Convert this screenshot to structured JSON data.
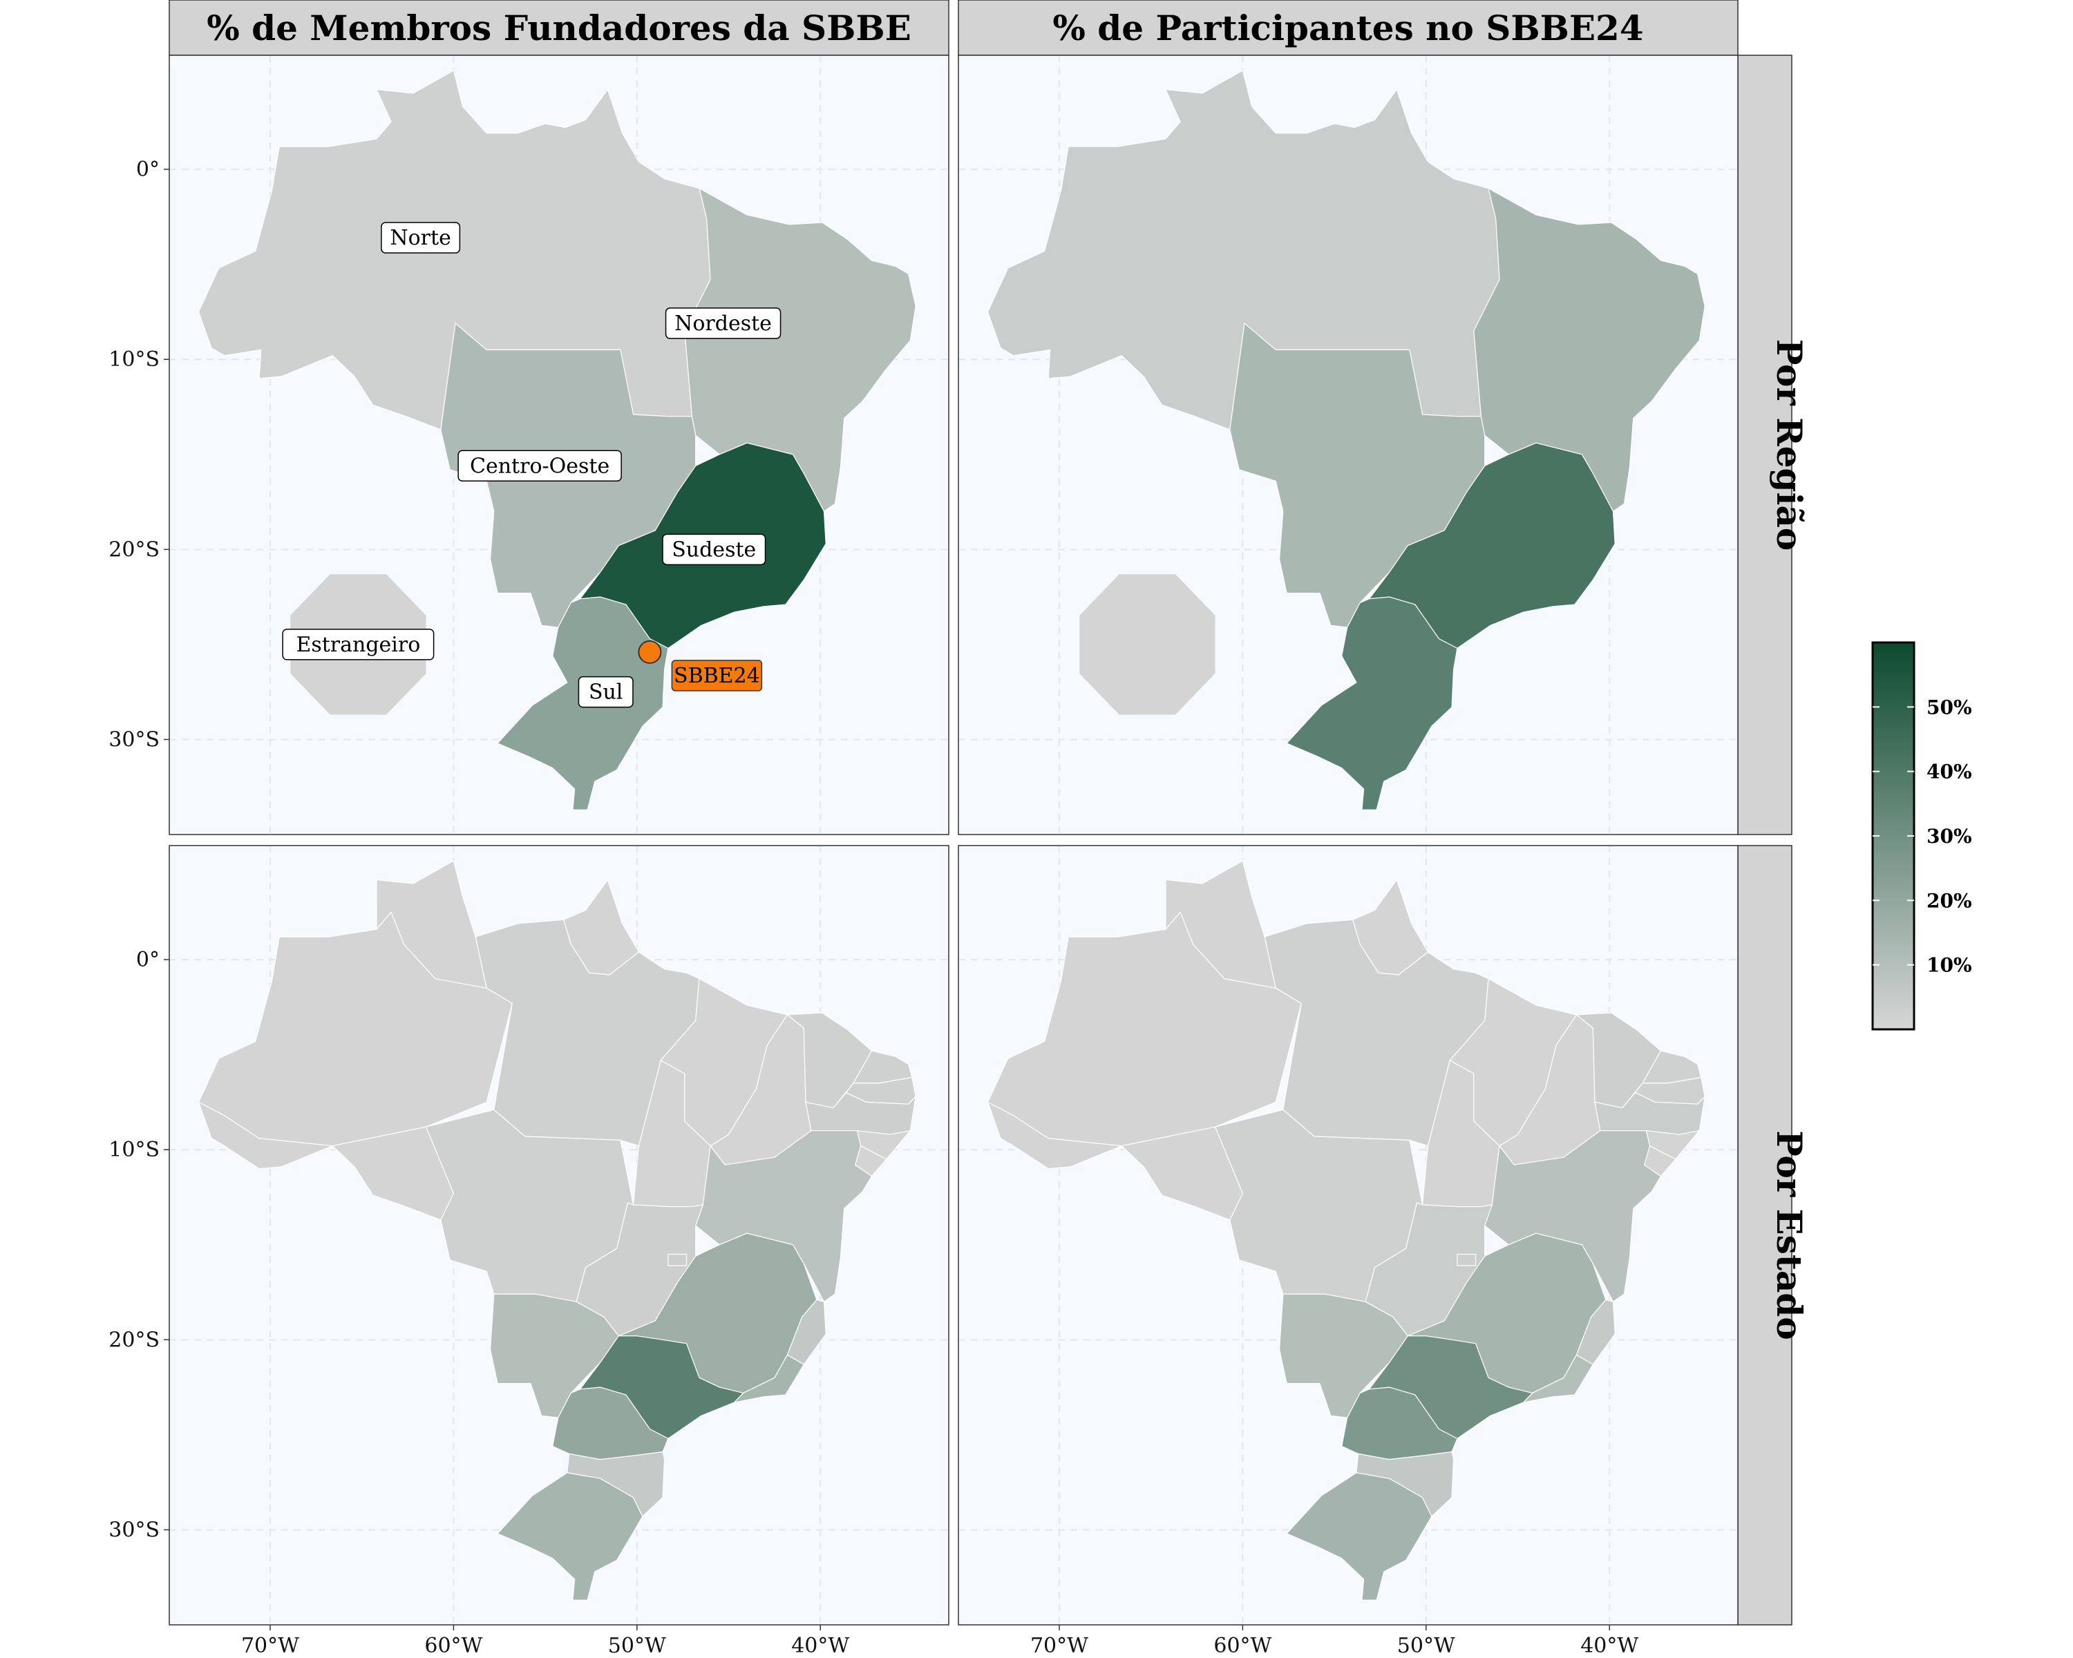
{
  "panels": {
    "col_titles": [
      "% de Membros Fundadores da SBBE",
      "% de Participantes no SBBE24"
    ],
    "row_titles": [
      "Por Região",
      "Por Estado"
    ]
  },
  "axes": {
    "x_ticks": [
      {
        "lon": -70,
        "label": "70°W"
      },
      {
        "lon": -60,
        "label": "60°W"
      },
      {
        "lon": -50,
        "label": "50°W"
      },
      {
        "lon": -40,
        "label": "40°W"
      }
    ],
    "y_ticks": [
      {
        "lat": 0,
        "label": "0°"
      },
      {
        "lat": -10,
        "label": "10°S"
      },
      {
        "lat": -20,
        "label": "20°S"
      },
      {
        "lat": -30,
        "label": "30°S"
      }
    ],
    "lon_range": [
      -75.5,
      -33
    ],
    "lat_range": [
      -35,
      6
    ]
  },
  "region_labels": [
    {
      "name": "Norte",
      "lon": -61.8,
      "lat": -3.6
    },
    {
      "name": "Nordeste",
      "lon": -45.3,
      "lat": -8.1
    },
    {
      "name": "Centro-Oeste",
      "lon": -55.3,
      "lat": -15.6
    },
    {
      "name": "Sudeste",
      "lon": -45.8,
      "lat": -20.0
    },
    {
      "name": "Sul",
      "lon": -51.7,
      "lat": -27.5
    },
    {
      "name": "Estrangeiro",
      "lon": -65.2,
      "lat": -25.0
    }
  ],
  "event_marker": {
    "name": "SBBE24",
    "lon": -49.3,
    "lat": -25.4,
    "color": "#f57a0c"
  },
  "legend": {
    "ticks": [
      {
        "value": 10,
        "label": "10%"
      },
      {
        "value": 20,
        "label": "20%"
      },
      {
        "value": 30,
        "label": "30%"
      },
      {
        "value": 40,
        "label": "40%"
      },
      {
        "value": 50,
        "label": "50%"
      }
    ],
    "range": [
      0,
      60
    ],
    "color_low": "#d6d6d6",
    "color_high": "#0c4a30"
  },
  "chart_data": {
    "type": "choropleth",
    "region_values": {
      "fundadores": {
        "Norte": 2,
        "Nordeste": 10,
        "Centro-Oeste": 12,
        "Sudeste": 55,
        "Sul": 22,
        "Estrangeiro": 1
      },
      "participantes": {
        "Norte": 4,
        "Nordeste": 14,
        "Centro-Oeste": 13,
        "Sudeste": 42,
        "Sul": 37,
        "Estrangeiro": 1
      }
    },
    "state_values": {
      "fundadores": {
        "SP": 37,
        "MG": 17,
        "RJ": 14,
        "ES": 6,
        "PR": 20,
        "SC": 5,
        "RS": 14,
        "MS": 10,
        "GO": 3,
        "DF": 3,
        "MT": 2,
        "BA": 8,
        "PE": 3,
        "CE": 2,
        "RN": 2,
        "PB": 2,
        "AL": 1,
        "SE": 1,
        "PI": 1,
        "MA": 1,
        "AM": 1,
        "PA": 2,
        "TO": 1,
        "RO": 1,
        "AC": 1,
        "RR": 1,
        "AP": 1
      },
      "participantes": {
        "SP": 30,
        "MG": 14,
        "RJ": 10,
        "ES": 5,
        "PR": 26,
        "SC": 6,
        "RS": 15,
        "MS": 10,
        "GO": 4,
        "DF": 3,
        "MT": 2,
        "BA": 9,
        "PE": 4,
        "CE": 3,
        "RN": 2,
        "PB": 2,
        "AL": 1,
        "SE": 1,
        "PI": 1,
        "MA": 1,
        "AM": 1,
        "PA": 2,
        "TO": 1,
        "RO": 1,
        "AC": 1,
        "RR": 1,
        "AP": 1
      }
    }
  }
}
